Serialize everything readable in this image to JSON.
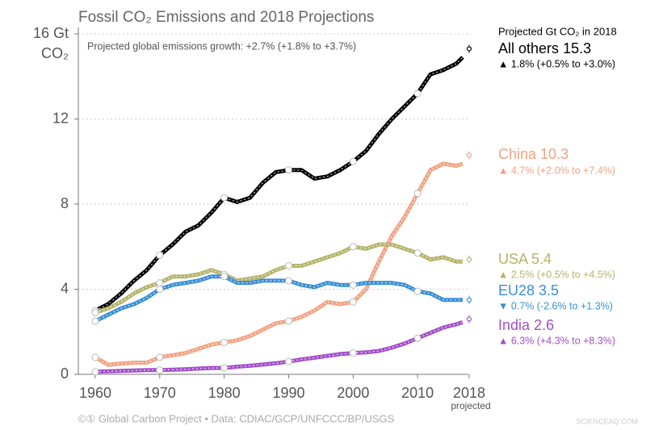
{
  "chart_data": {
    "type": "line",
    "title": "Fossil CO₂ Emissions and 2018 Projections",
    "subtitle": "Projected global emissions growth: +2.7% (+1.8% to +3.7%)",
    "y_unit": "CO₂",
    "legend_title": "Projected Gt CO₂ in 2018",
    "projection_x": 2018,
    "projection_label": "projected",
    "footer": "©① Global Carbon Project  •  Data: CDIAC/GCP/UNFCCC/BP/USGS",
    "watermark": "SCIENCEAQ.COM",
    "x": [
      1960,
      1962,
      1964,
      1966,
      1968,
      1970,
      1972,
      1974,
      1976,
      1978,
      1980,
      1982,
      1984,
      1986,
      1988,
      1990,
      1992,
      1994,
      1996,
      1998,
      2000,
      2002,
      2004,
      2006,
      2008,
      2010,
      2012,
      2014,
      2016,
      2017
    ],
    "xlim": [
      1958,
      2019
    ],
    "xticks": [
      1960,
      1970,
      1980,
      1990,
      2000,
      2010,
      2018
    ],
    "ylim": [
      0,
      16
    ],
    "yticks": [
      0,
      4,
      8,
      12,
      {
        "value": 16,
        "label": "16 Gt"
      }
    ],
    "grid": true,
    "series": [
      {
        "name": "All others",
        "color": "#000000",
        "projected": 15.3,
        "growth": "▲ 1.8% (+0.5% to +3.0%)",
        "values": [
          3.0,
          3.3,
          3.8,
          4.4,
          4.9,
          5.6,
          6.1,
          6.7,
          7.0,
          7.6,
          8.3,
          8.1,
          8.3,
          9.0,
          9.5,
          9.6,
          9.6,
          9.2,
          9.3,
          9.6,
          10.0,
          10.5,
          11.3,
          12.0,
          12.6,
          13.2,
          14.1,
          14.3,
          14.6,
          14.9
        ]
      },
      {
        "name": "China",
        "color": "#f2a383",
        "projected": 10.3,
        "growth": "▲ 4.7% (+2.0% to +7.4%)",
        "values": [
          0.8,
          0.45,
          0.5,
          0.55,
          0.55,
          0.8,
          0.9,
          1.0,
          1.2,
          1.4,
          1.5,
          1.6,
          1.8,
          2.1,
          2.4,
          2.5,
          2.7,
          3.0,
          3.4,
          3.3,
          3.4,
          4.0,
          5.3,
          6.5,
          7.4,
          8.5,
          9.6,
          9.9,
          9.8,
          9.9
        ]
      },
      {
        "name": "USA",
        "color": "#b5b46a",
        "projected": 5.4,
        "growth": "▲ 2.5% (+0.5% to +4.5%)",
        "values": [
          2.9,
          3.1,
          3.4,
          3.8,
          4.1,
          4.3,
          4.6,
          4.6,
          4.7,
          4.9,
          4.7,
          4.4,
          4.5,
          4.6,
          4.9,
          5.1,
          5.1,
          5.3,
          5.5,
          5.7,
          6.0,
          5.9,
          6.1,
          6.1,
          5.9,
          5.7,
          5.4,
          5.5,
          5.3,
          5.3
        ]
      },
      {
        "name": "EU28",
        "color": "#3a8fd6",
        "projected": 3.5,
        "growth": "▼ 0.7% (-2.6% to +1.3%)",
        "values": [
          2.5,
          2.8,
          3.1,
          3.3,
          3.6,
          4.0,
          4.2,
          4.3,
          4.4,
          4.6,
          4.6,
          4.3,
          4.3,
          4.4,
          4.4,
          4.4,
          4.2,
          4.1,
          4.3,
          4.2,
          4.2,
          4.3,
          4.3,
          4.3,
          4.2,
          3.9,
          3.8,
          3.5,
          3.5,
          3.5
        ]
      },
      {
        "name": "India",
        "color": "#a24fc9",
        "projected": 2.6,
        "growth": "▲ 6.3% (+4.3% to +8.3%)",
        "values": [
          0.12,
          0.14,
          0.16,
          0.18,
          0.2,
          0.2,
          0.22,
          0.24,
          0.27,
          0.3,
          0.3,
          0.36,
          0.4,
          0.46,
          0.52,
          0.6,
          0.7,
          0.78,
          0.87,
          0.95,
          1.0,
          1.03,
          1.1,
          1.25,
          1.45,
          1.7,
          1.95,
          2.2,
          2.35,
          2.45
        ]
      }
    ]
  }
}
